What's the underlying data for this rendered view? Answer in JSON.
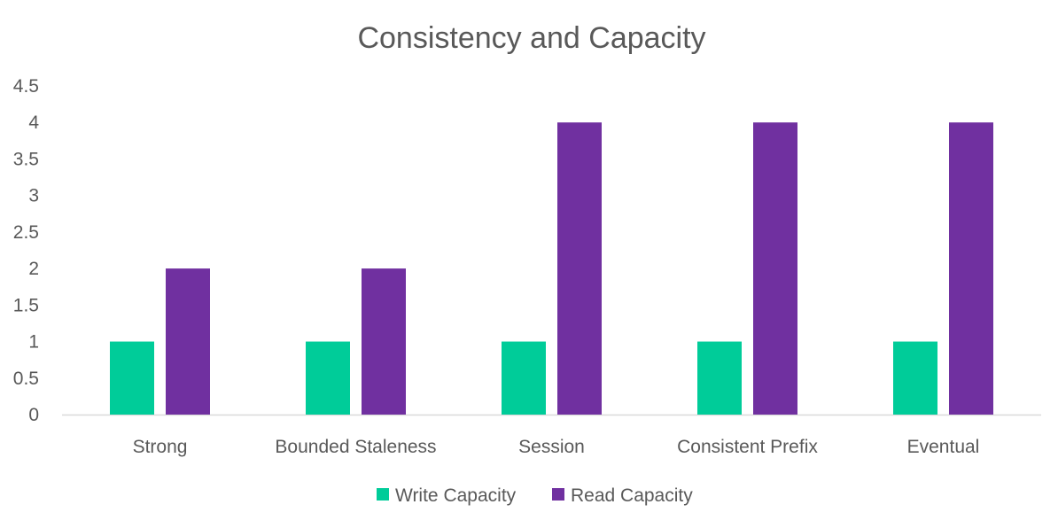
{
  "chart_data": {
    "type": "bar",
    "title": "Consistency and Capacity",
    "categories": [
      "Strong",
      "Bounded Staleness",
      "Session",
      "Consistent Prefix",
      "Eventual"
    ],
    "series": [
      {
        "name": "Write Capacity",
        "color": "#00CC99",
        "values": [
          1,
          1,
          1,
          1,
          1
        ]
      },
      {
        "name": "Read Capacity",
        "color": "#7030A0",
        "values": [
          2,
          2,
          4,
          4,
          4
        ]
      }
    ],
    "ylim": [
      0,
      4.5
    ],
    "yticks": [
      "0",
      "0.5",
      "1",
      "1.5",
      "2",
      "2.5",
      "3",
      "3.5",
      "4",
      "4.5"
    ],
    "grid": false,
    "legend": "bottom-center",
    "xlabel": "",
    "ylabel": ""
  }
}
